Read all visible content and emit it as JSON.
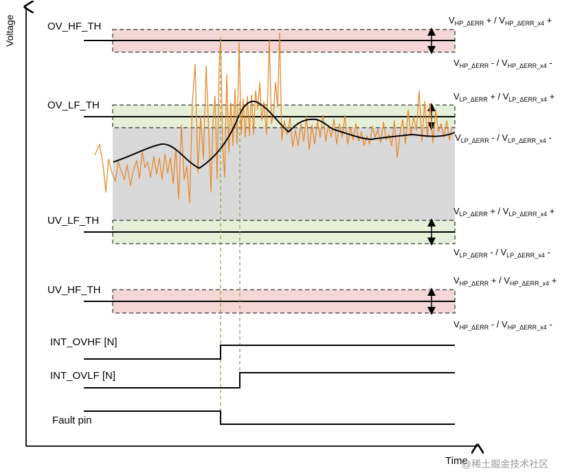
{
  "axes": {
    "y_label": "Voltage",
    "x_label": "Time"
  },
  "thresholds": [
    {
      "id": "ov_hf",
      "label": "OV_HF_TH",
      "band_color": "#f3d6d6",
      "err_upper": "HP",
      "err_lower": "HP"
    },
    {
      "id": "ov_lf",
      "label": "OV_LF_TH",
      "band_color": "#e6efd8",
      "err_upper": "LP",
      "err_lower": "LP"
    },
    {
      "id": "uv_lf",
      "label": "UV_LF_TH",
      "band_color": "#e6efd8",
      "err_upper": "LP",
      "err_lower": "LP"
    },
    {
      "id": "uv_hf",
      "label": "UV_HF_TH",
      "band_color": "#f3d6d6",
      "err_upper": "HP",
      "err_lower": "HP"
    }
  ],
  "error_labels": {
    "hp_plus": {
      "v1": "V",
      "s1": "HP_ΔERR",
      "op1": " + / ",
      "v2": "V",
      "s2": "HP_ΔERR_x4",
      "op2": " +"
    },
    "hp_minus": {
      "v1": "V",
      "s1": "HP_ΔERR",
      "op1": " - / ",
      "v2": "V",
      "s2": "HP_ΔERR_x4",
      "op2": " -"
    },
    "lp_plus": {
      "v1": "V",
      "s1": "LP_ΔERR",
      "op1": " + / ",
      "v2": "V",
      "s2": "LP_ΔERR_x4",
      "op2": " +"
    },
    "lp_minus": {
      "v1": "V",
      "s1": "LP_ΔERR",
      "op1": " - / ",
      "v2": "V",
      "s2": "LP_ΔERR_x4",
      "op2": " -"
    }
  },
  "signals": [
    {
      "id": "int_ovhf",
      "label": "INT_OVHF [N]"
    },
    {
      "id": "int_ovlf",
      "label": "INT_OVLF [N]"
    },
    {
      "id": "fault_pin",
      "label": "Fault pin"
    }
  ],
  "colors": {
    "noisy_signal": "#e8892b",
    "filtered_signal": "#000000",
    "normal_region": "#d9d9d9",
    "marker_line": "#8a9a4a"
  },
  "watermark": "@稀土掘金技术社区"
}
